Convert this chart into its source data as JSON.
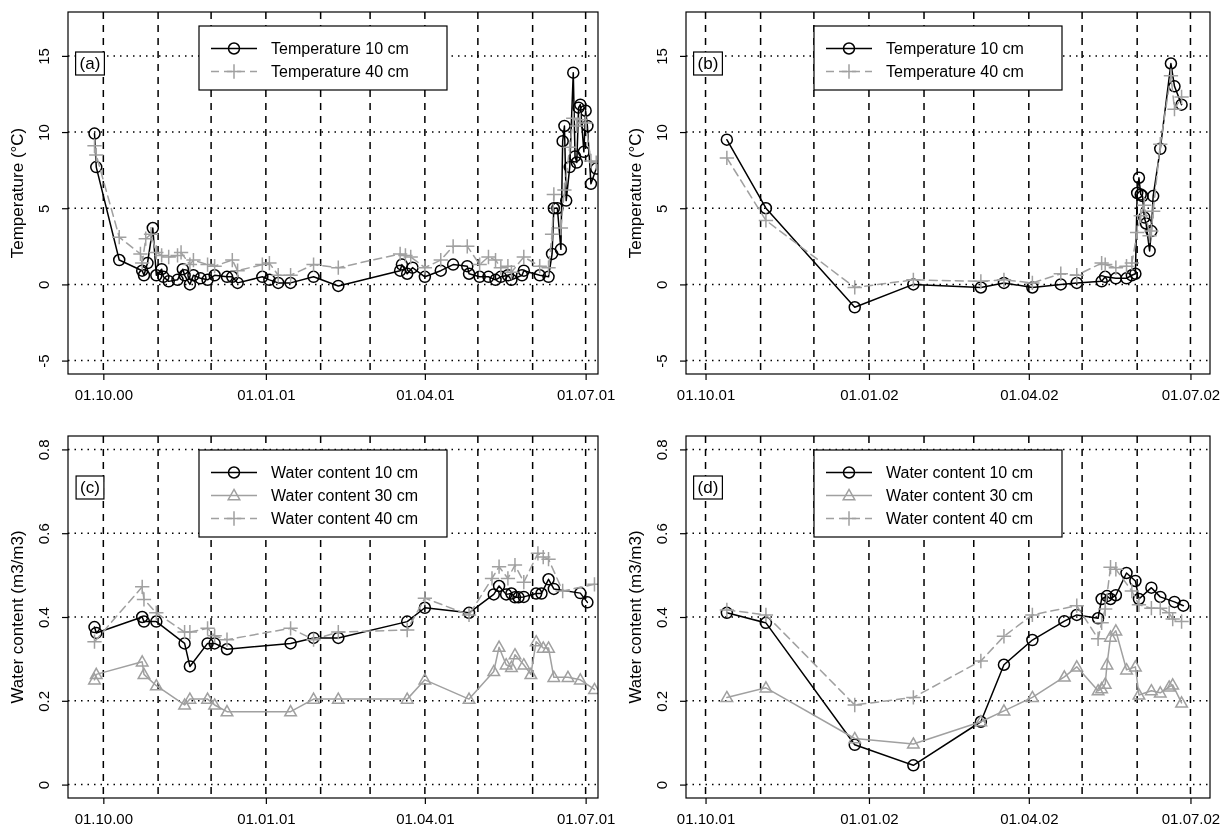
{
  "chart_data": [
    {
      "type": "line",
      "ylabel": "Temperature (°C)",
      "annotations": [
        "(a)"
      ],
      "legend": "top",
      "grid": true,
      "xlim": [
        "2000-09-11",
        "2001-07-08"
      ],
      "ylim": [
        -5.88,
        17.88
      ],
      "yticks": [
        -5,
        0,
        5,
        10,
        15
      ],
      "xticks": [
        {
          "value": "2000-10-01",
          "label": "01.10.00"
        },
        {
          "value": "2000-11-01",
          "label": null
        },
        {
          "value": "2000-12-01",
          "label": null
        },
        {
          "value": "2001-01-01",
          "label": "01.01.01"
        },
        {
          "value": "2001-02-01",
          "label": null
        },
        {
          "value": "2001-03-01",
          "label": null
        },
        {
          "value": "2001-04-01",
          "label": "01.04.01"
        },
        {
          "value": "2001-05-01",
          "label": null
        },
        {
          "value": "2001-06-01",
          "label": null
        },
        {
          "value": "2001-07-01",
          "label": "01.07.01"
        }
      ],
      "series": [
        {
          "name": "Temperature 10 cm",
          "color": "#000000",
          "marker": "circle",
          "line_style": "solid",
          "x": [
            "2000-09-26",
            "2000-09-27",
            "2000-10-10",
            "2000-10-23",
            "2000-10-24",
            "2000-10-26",
            "2000-10-29",
            "2000-10-31",
            "2000-11-03",
            "2000-11-04",
            "2000-11-07",
            "2000-11-12",
            "2000-11-15",
            "2000-11-16",
            "2000-11-19",
            "2000-11-21",
            "2000-11-25",
            "2000-11-29",
            "2000-12-03",
            "2000-12-10",
            "2000-12-13",
            "2000-12-16",
            "2000-12-30",
            "2001-01-03",
            "2001-01-08",
            "2001-01-15",
            "2001-01-28",
            "2001-02-11",
            "2001-03-18",
            "2001-03-19",
            "2001-03-22",
            "2001-03-25",
            "2001-04-01",
            "2001-04-10",
            "2001-04-17",
            "2001-04-25",
            "2001-04-26",
            "2001-05-02",
            "2001-05-07",
            "2001-05-11",
            "2001-05-14",
            "2001-05-18",
            "2001-05-20",
            "2001-05-26",
            "2001-05-27",
            "2001-06-05",
            "2001-06-10",
            "2001-06-12",
            "2001-06-13",
            "2001-06-15",
            "2001-06-17",
            "2001-06-18",
            "2001-06-19",
            "2001-06-20",
            "2001-06-22",
            "2001-06-24",
            "2001-06-25",
            "2001-06-26",
            "2001-06-27",
            "2001-06-28",
            "2001-06-30",
            "2001-07-01",
            "2001-07-02",
            "2001-07-04",
            "2001-07-07"
          ],
          "values": [
            9.9,
            7.7,
            1.6,
            0.9,
            0.6,
            1.4,
            3.7,
            0.6,
            1.0,
            0.5,
            0.2,
            0.3,
            1.0,
            0.6,
            0.0,
            0.6,
            0.4,
            0.3,
            0.6,
            0.5,
            0.5,
            0.1,
            0.5,
            0.3,
            0.1,
            0.1,
            0.5,
            -0.1,
            0.9,
            1.3,
            0.7,
            1.1,
            0.5,
            0.9,
            1.3,
            1.2,
            0.7,
            0.5,
            0.5,
            0.3,
            0.5,
            0.6,
            0.3,
            0.6,
            0.9,
            0.6,
            0.5,
            2.0,
            5.0,
            5.0,
            2.3,
            9.4,
            10.4,
            5.5,
            7.7,
            13.9,
            8.4,
            8.0,
            11.6,
            11.8,
            8.7,
            11.4,
            10.4,
            6.6,
            7.6
          ]
        },
        {
          "name": "Temperature 40 cm",
          "color": "#a0a0a0",
          "marker": "cross",
          "line_style": "dashed",
          "x": [
            "2000-09-26",
            "2000-09-27",
            "2000-10-10",
            "2000-10-22",
            "2000-10-23",
            "2000-10-25",
            "2000-10-28",
            "2000-10-31",
            "2000-11-03",
            "2000-11-07",
            "2000-11-12",
            "2000-11-14",
            "2000-11-19",
            "2000-11-21",
            "2000-11-29",
            "2000-12-03",
            "2000-12-13",
            "2000-12-16",
            "2000-12-30",
            "2001-01-03",
            "2001-01-08",
            "2001-01-15",
            "2001-01-28",
            "2001-02-11",
            "2001-03-18",
            "2001-03-21",
            "2001-03-24",
            "2001-04-01",
            "2001-04-10",
            "2001-04-17",
            "2001-04-25",
            "2001-05-02",
            "2001-05-07",
            "2001-05-11",
            "2001-05-14",
            "2001-05-18",
            "2001-05-20",
            "2001-05-27",
            "2001-06-05",
            "2001-06-10",
            "2001-06-12",
            "2001-06-13",
            "2001-06-15",
            "2001-06-17",
            "2001-06-19",
            "2001-06-22",
            "2001-06-24",
            "2001-06-26",
            "2001-06-28",
            "2001-07-01",
            "2001-07-04",
            "2001-07-07"
          ],
          "values": [
            9.1,
            8.5,
            3.1,
            2.0,
            1.4,
            3.0,
            3.3,
            2.1,
            1.9,
            1.8,
            1.9,
            2.1,
            1.3,
            1.6,
            1.3,
            1.2,
            1.6,
            0.9,
            1.3,
            1.4,
            0.6,
            0.6,
            1.3,
            1.1,
            2.0,
            1.9,
            1.8,
            1.1,
            1.6,
            2.5,
            2.5,
            1.3,
            1.8,
            1.6,
            1.1,
            1.2,
            0.8,
            1.8,
            1.2,
            1.1,
            3.3,
            5.9,
            null,
            3.7,
            6.2,
            9.0,
            10.9,
            10.4,
            10.8,
            10.6,
            8.1,
            8.0
          ]
        }
      ]
    },
    {
      "type": "line",
      "ylabel": "Temperature (°C)",
      "annotations": [
        "(b)"
      ],
      "legend": "top",
      "grid": true,
      "xlim": [
        "2001-09-20",
        "2002-07-12"
      ],
      "ylim": [
        -5.88,
        17.88
      ],
      "yticks": [
        -5,
        0,
        5,
        10,
        15
      ],
      "xticks": [
        {
          "value": "2001-10-01",
          "label": "01.10.01"
        },
        {
          "value": "2001-11-01",
          "label": null
        },
        {
          "value": "2001-12-01",
          "label": null
        },
        {
          "value": "2002-01-01",
          "label": "01.01.02"
        },
        {
          "value": "2002-02-01",
          "label": null
        },
        {
          "value": "2002-03-01",
          "label": null
        },
        {
          "value": "2002-04-01",
          "label": "01.04.02"
        },
        {
          "value": "2002-05-01",
          "label": null
        },
        {
          "value": "2002-06-01",
          "label": null
        },
        {
          "value": "2002-07-01",
          "label": "01.07.02"
        }
      ],
      "series": [
        {
          "name": "Temperature 10 cm",
          "color": "#000000",
          "marker": "circle",
          "line_style": "solid",
          "x": [
            "2001-10-13",
            "2001-11-04",
            "2001-12-24",
            "2002-01-26",
            "2002-03-05",
            "2002-03-18",
            "2002-04-03",
            "2002-04-19",
            "2002-04-28",
            "2002-05-12",
            "2002-05-14",
            "2002-05-20",
            "2002-05-26",
            "2002-05-29",
            "2002-05-31",
            "2002-06-01",
            "2002-06-02",
            "2002-06-03",
            "2002-06-04",
            "2002-06-05",
            "2002-06-06",
            "2002-06-08",
            "2002-06-09",
            "2002-06-10",
            "2002-06-14",
            "2002-06-20",
            "2002-06-22",
            "2002-06-26"
          ],
          "values": [
            9.5,
            5.0,
            -1.5,
            0.0,
            -0.2,
            0.1,
            -0.2,
            0.0,
            0.1,
            0.2,
            0.5,
            0.4,
            0.4,
            0.6,
            0.7,
            6.0,
            7.0,
            5.9,
            5.8,
            4.4,
            4.0,
            2.2,
            3.5,
            5.8,
            8.9,
            14.5,
            13.0,
            11.8
          ]
        },
        {
          "name": "Temperature 40 cm",
          "color": "#a0a0a0",
          "marker": "cross",
          "line_style": "dashed",
          "x": [
            "2001-10-13",
            "2001-11-04",
            "2001-12-24",
            "2002-01-26",
            "2002-03-05",
            "2002-03-18",
            "2002-04-03",
            "2002-04-19",
            "2002-04-28",
            "2002-05-12",
            "2002-05-14",
            "2002-05-20",
            "2002-05-26",
            "2002-05-29",
            "2002-06-01",
            "2002-06-03",
            "2002-06-05",
            "2002-06-08",
            "2002-06-09",
            "2002-06-10",
            "2002-06-14",
            "2002-06-20",
            "2002-06-22",
            "2002-06-26"
          ],
          "values": [
            8.3,
            4.2,
            -0.2,
            0.3,
            0.2,
            0.3,
            0.1,
            0.7,
            0.6,
            1.4,
            1.3,
            1.1,
            1.2,
            1.4,
            3.4,
            4.5,
            5.2,
            3.2,
            3.5,
            4.8,
            9.2,
            13.7,
            11.5,
            12.3
          ]
        }
      ]
    },
    {
      "type": "line",
      "ylabel": "Water content (m3/m3)",
      "annotations": [
        "(c)"
      ],
      "legend": "top",
      "grid": true,
      "xlim": [
        "2000-09-11",
        "2001-07-08"
      ],
      "ylim": [
        -0.032,
        0.832
      ],
      "yticks": [
        0,
        0.2,
        0.4,
        0.6,
        0.8
      ],
      "xticks": [
        {
          "value": "2000-10-01",
          "label": "01.10.00"
        },
        {
          "value": "2000-11-01",
          "label": null
        },
        {
          "value": "2000-12-01",
          "label": null
        },
        {
          "value": "2001-01-01",
          "label": "01.01.01"
        },
        {
          "value": "2001-02-01",
          "label": null
        },
        {
          "value": "2001-03-01",
          "label": null
        },
        {
          "value": "2001-04-01",
          "label": "01.04.01"
        },
        {
          "value": "2001-05-01",
          "label": null
        },
        {
          "value": "2001-06-01",
          "label": null
        },
        {
          "value": "2001-07-01",
          "label": "01.07.01"
        }
      ],
      "series": [
        {
          "name": "Water content 10 cm",
          "color": "#000000",
          "marker": "circle",
          "line_style": "solid",
          "x": [
            "2000-09-26",
            "2000-09-27",
            "2000-10-23",
            "2000-10-24",
            "2000-10-31",
            "2000-11-16",
            "2000-11-19",
            "2000-11-29",
            "2000-12-03",
            "2000-12-10",
            "2001-01-15",
            "2001-01-28",
            "2001-02-11",
            "2001-03-22",
            "2001-04-01",
            "2001-04-26",
            "2001-05-10",
            "2001-05-13",
            "2001-05-17",
            "2001-05-20",
            "2001-05-22",
            "2001-05-24",
            "2001-05-27",
            "2001-06-03",
            "2001-06-06",
            "2001-06-10",
            "2001-06-13",
            "2001-06-28",
            "2001-07-02"
          ],
          "values": [
            0.376,
            0.362,
            0.4,
            0.389,
            0.389,
            0.337,
            0.282,
            0.337,
            0.337,
            0.323,
            0.337,
            0.35,
            0.35,
            0.389,
            0.422,
            0.41,
            0.454,
            0.474,
            0.454,
            0.456,
            0.447,
            0.447,
            0.448,
            0.456,
            0.456,
            0.49,
            0.467,
            0.457,
            0.435
          ]
        },
        {
          "name": "Water content 30 cm",
          "color": "#a0a0a0",
          "marker": "triangle",
          "line_style": "solid",
          "x": [
            "2000-09-26",
            "2000-09-27",
            "2000-10-23",
            "2000-10-24",
            "2000-10-31",
            "2000-11-16",
            "2000-11-19",
            "2000-11-29",
            "2000-12-03",
            "2000-12-10",
            "2001-01-15",
            "2001-01-28",
            "2001-02-11",
            "2001-03-22",
            "2001-04-01",
            "2001-04-26",
            "2001-05-10",
            "2001-05-13",
            "2001-05-17",
            "2001-05-20",
            "2001-05-22",
            "2001-05-27",
            "2001-05-31",
            "2001-06-03",
            "2001-06-07",
            "2001-06-10",
            "2001-06-13",
            "2001-06-21",
            "2001-06-28",
            "2001-07-06"
          ],
          "values": [
            0.25,
            0.263,
            0.293,
            0.263,
            0.236,
            0.19,
            0.204,
            0.204,
            0.19,
            0.174,
            0.174,
            0.204,
            0.204,
            0.204,
            0.25,
            0.204,
            0.27,
            0.328,
            0.286,
            0.28,
            0.31,
            0.286,
            0.263,
            0.341,
            0.326,
            0.326,
            0.256,
            0.256,
            0.25,
            0.227
          ]
        },
        {
          "name": "Water content 40 cm",
          "color": "#a0a0a0",
          "marker": "cross",
          "line_style": "dashed",
          "x": [
            "2000-09-26",
            "2000-10-23",
            "2000-10-24",
            "2000-10-31",
            "2000-11-16",
            "2000-11-19",
            "2000-11-29",
            "2000-12-03",
            "2000-12-10",
            "2001-01-15",
            "2001-01-28",
            "2001-02-11",
            "2001-03-22",
            "2001-04-01",
            "2001-04-26",
            "2001-05-09",
            "2001-05-13",
            "2001-05-18",
            "2001-05-22",
            "2001-05-27",
            "2001-06-04",
            "2001-06-07",
            "2001-06-10",
            "2001-06-18",
            "2001-07-06"
          ],
          "values": [
            0.341,
            0.472,
            0.442,
            0.41,
            0.364,
            0.364,
            0.373,
            0.355,
            0.346,
            0.373,
            0.346,
            0.364,
            0.369,
            0.445,
            0.405,
            0.492,
            0.52,
            0.492,
            0.524,
            0.483,
            0.552,
            0.543,
            0.538,
            0.462,
            0.478
          ]
        }
      ]
    },
    {
      "type": "line",
      "ylabel": "Water content (m3/m3)",
      "annotations": [
        "(d)"
      ],
      "legend": "top",
      "grid": true,
      "xlim": [
        "2001-09-20",
        "2002-07-12"
      ],
      "ylim": [
        -0.032,
        0.832
      ],
      "yticks": [
        0,
        0.2,
        0.4,
        0.6,
        0.8
      ],
      "xticks": [
        {
          "value": "2001-10-01",
          "label": "01.10.01"
        },
        {
          "value": "2001-11-01",
          "label": null
        },
        {
          "value": "2001-12-01",
          "label": null
        },
        {
          "value": "2002-01-01",
          "label": "01.01.02"
        },
        {
          "value": "2002-02-01",
          "label": null
        },
        {
          "value": "2002-03-01",
          "label": null
        },
        {
          "value": "2002-04-01",
          "label": "01.04.02"
        },
        {
          "value": "2002-05-01",
          "label": null
        },
        {
          "value": "2002-06-01",
          "label": null
        },
        {
          "value": "2002-07-01",
          "label": "01.07.02"
        }
      ],
      "series": [
        {
          "name": "Water content 10 cm",
          "color": "#000000",
          "marker": "circle",
          "line_style": "solid",
          "x": [
            "2001-10-13",
            "2001-11-04",
            "2001-12-24",
            "2002-01-26",
            "2002-03-05",
            "2002-03-18",
            "2002-04-03",
            "2002-04-21",
            "2002-04-28",
            "2002-05-10",
            "2002-05-12",
            "2002-05-15",
            "2002-05-17",
            "2002-05-20",
            "2002-05-26",
            "2002-05-31",
            "2002-06-02",
            "2002-06-09",
            "2002-06-14",
            "2002-06-22",
            "2002-06-27"
          ],
          "values": [
            0.41,
            0.386,
            0.095,
            0.046,
            0.15,
            0.286,
            0.345,
            0.39,
            0.405,
            0.397,
            0.443,
            0.45,
            0.443,
            0.452,
            0.505,
            0.486,
            0.443,
            0.47,
            0.448,
            0.436,
            0.427
          ]
        },
        {
          "name": "Water content 30 cm",
          "color": "#a0a0a0",
          "marker": "triangle",
          "line_style": "solid",
          "x": [
            "2001-10-13",
            "2001-11-04",
            "2001-12-24",
            "2002-01-26",
            "2002-03-05",
            "2002-03-18",
            "2002-04-03",
            "2002-04-21",
            "2002-04-28",
            "2002-05-10",
            "2002-05-12",
            "2002-05-14",
            "2002-05-15",
            "2002-05-17",
            "2002-05-20",
            "2002-05-26",
            "2002-05-31",
            "2002-06-02",
            "2002-06-09",
            "2002-06-14",
            "2002-06-19",
            "2002-06-21",
            "2002-06-26"
          ],
          "values": [
            0.208,
            0.231,
            0.11,
            0.097,
            0.15,
            0.176,
            0.208,
            0.257,
            0.281,
            0.224,
            0.229,
            0.24,
            0.286,
            0.352,
            0.367,
            0.274,
            0.281,
            0.214,
            0.224,
            0.219,
            0.233,
            0.238,
            0.195
          ]
        },
        {
          "name": "Water content 40 cm",
          "color": "#a0a0a0",
          "marker": "cross",
          "line_style": "dashed",
          "x": [
            "2001-10-13",
            "2001-11-04",
            "2001-12-24",
            "2002-01-26",
            "2002-03-05",
            "2002-03-18",
            "2002-04-03",
            "2002-04-28",
            "2002-05-10",
            "2002-05-12",
            "2002-05-14",
            "2002-05-17",
            "2002-05-20",
            "2002-05-29",
            "2002-06-02",
            "2002-06-09",
            "2002-06-14",
            "2002-06-19",
            "2002-06-21",
            "2002-06-26"
          ],
          "values": [
            0.417,
            0.405,
            0.19,
            0.208,
            0.295,
            0.354,
            0.405,
            0.427,
            0.348,
            0.386,
            0.419,
            0.519,
            0.514,
            0.462,
            0.429,
            0.421,
            0.421,
            0.41,
            0.395,
            0.389
          ]
        }
      ]
    }
  ]
}
